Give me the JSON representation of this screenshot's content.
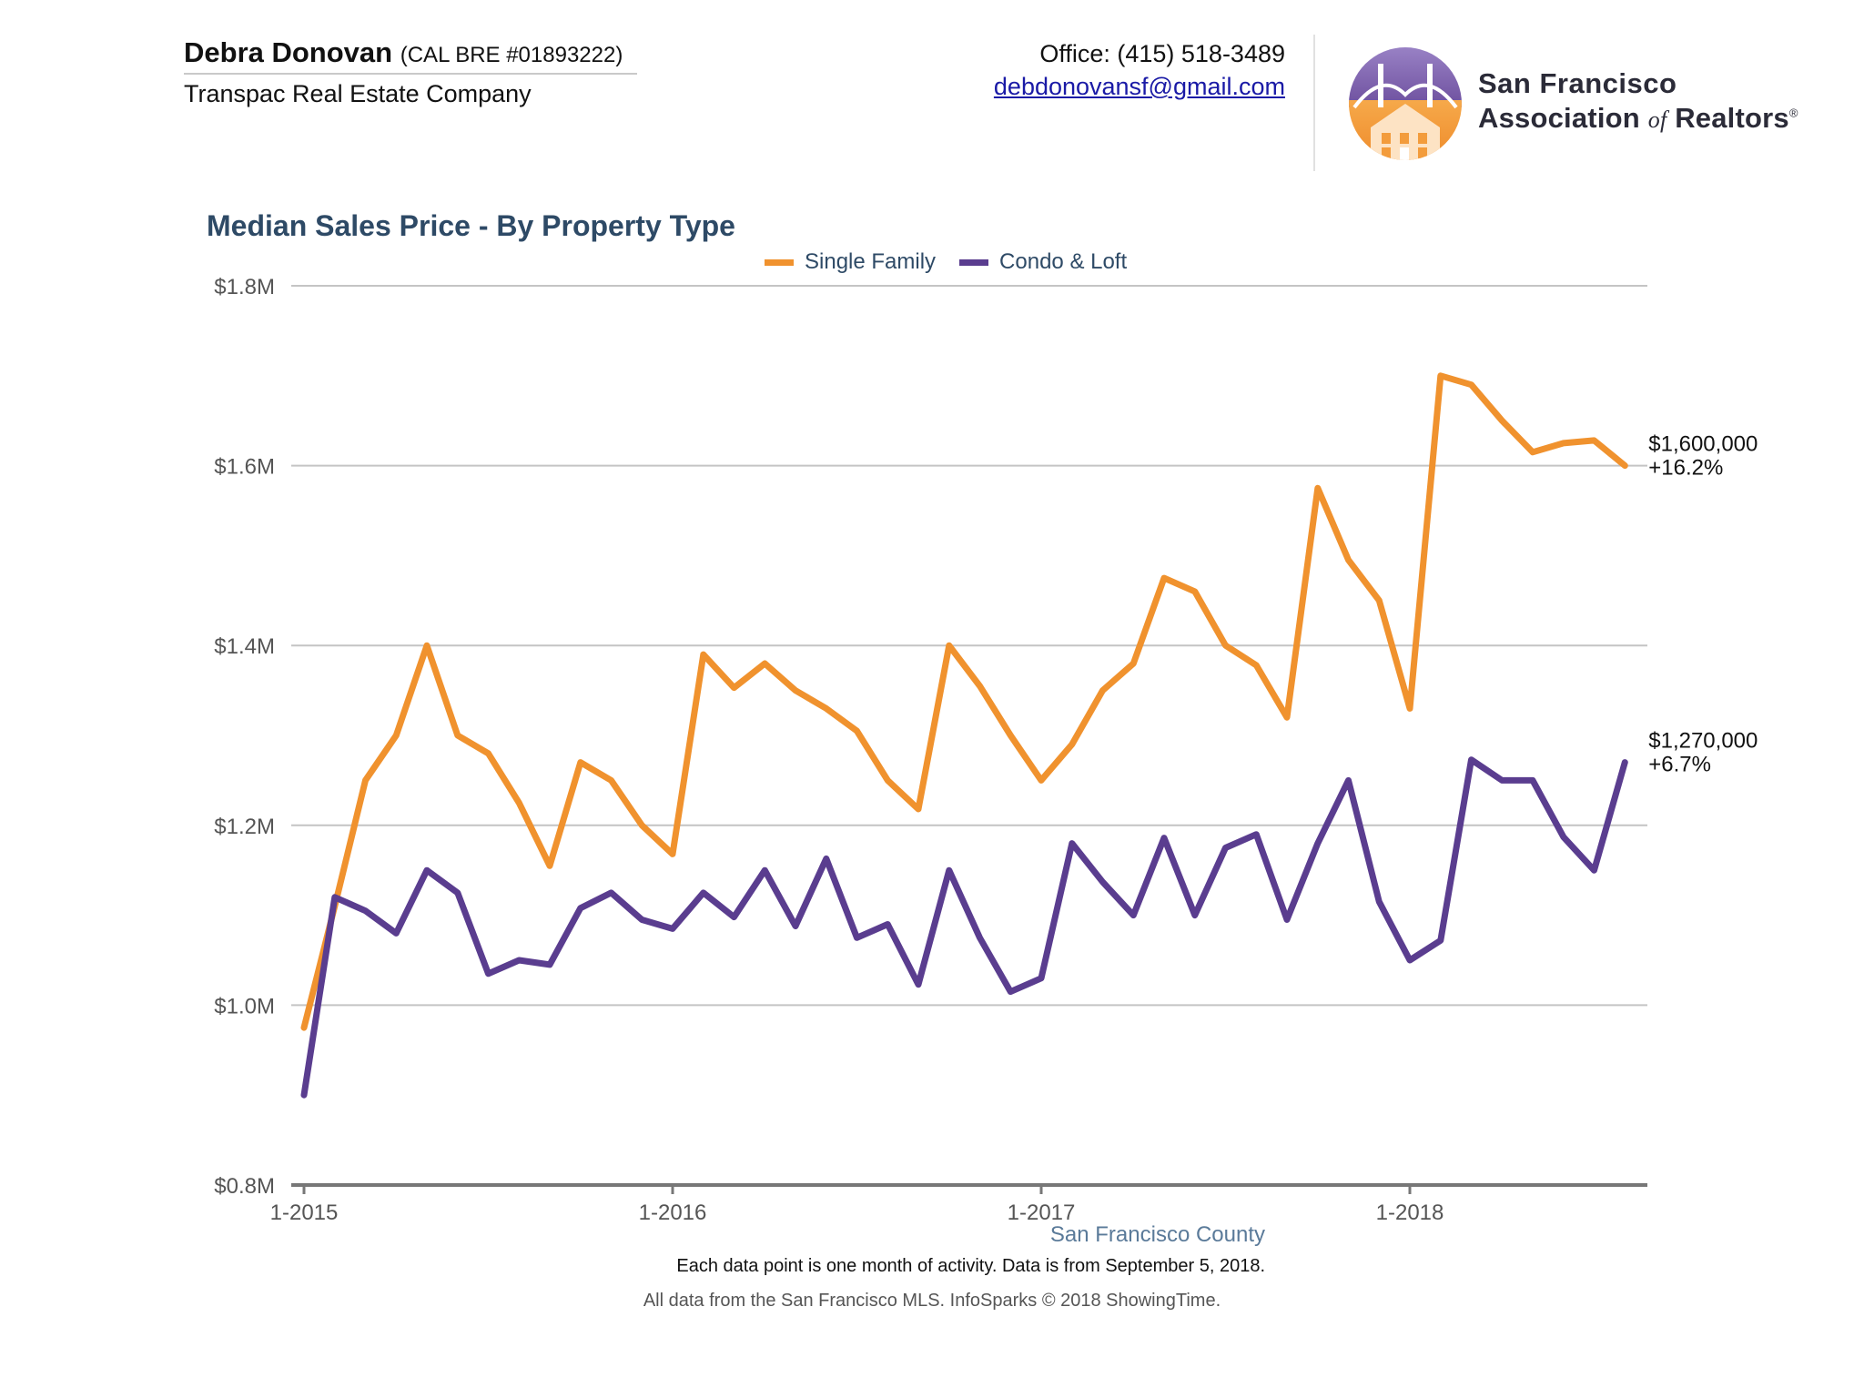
{
  "header": {
    "agent_name": "Debra Donovan",
    "agent_license": "(CAL BRE #01893222)",
    "company": "Transpac Real Estate Company",
    "office_phone": "Office: (415) 518-3489",
    "email": "debdonovansf@gmail.com"
  },
  "logo": {
    "line1": "San Francisco",
    "line2_a": "Association",
    "line2_of": "of",
    "line2_b": "Realtors",
    "registered": "®",
    "icon": "golden-gate-bridge-house-logo-icon",
    "colors": {
      "purple": "#7b5ea7",
      "orange": "#f39c3c"
    }
  },
  "chart_data": {
    "type": "line",
    "title": "Median Sales Price - By Property Type",
    "x_tick_labels": [
      "1-2015",
      "1-2016",
      "1-2017",
      "1-2018"
    ],
    "x_start": "2015-01",
    "x_end": "2018-08",
    "y_tick_labels": [
      "$0.8M",
      "$1.0M",
      "$1.2M",
      "$1.4M",
      "$1.6M",
      "$1.8M"
    ],
    "ylim": [
      0.8,
      1.8
    ],
    "y_unit": "$M",
    "grid": true,
    "legend_placement": "top-center",
    "region_label": "San Francisco County",
    "series": [
      {
        "name": "Single Family",
        "color": "#f0922e",
        "end_label_value": "$1,600,000",
        "end_label_change": "+16.2%",
        "values": [
          0.975,
          1.11,
          1.25,
          1.3,
          1.4,
          1.3,
          1.28,
          1.225,
          1.155,
          1.27,
          1.25,
          1.2,
          1.168,
          1.39,
          1.353,
          1.38,
          1.35,
          1.33,
          1.305,
          1.25,
          1.218,
          1.4,
          1.355,
          1.3,
          1.25,
          1.29,
          1.35,
          1.38,
          1.475,
          1.46,
          1.4,
          1.378,
          1.32,
          1.575,
          1.495,
          1.45,
          1.33,
          1.7,
          1.69,
          1.65,
          1.615,
          1.625,
          1.628,
          1.6
        ]
      },
      {
        "name": "Condo & Loft",
        "color": "#5a3d8f",
        "end_label_value": "$1,270,000",
        "end_label_change": "+6.7%",
        "values": [
          0.9,
          1.12,
          1.105,
          1.08,
          1.15,
          1.125,
          1.035,
          1.05,
          1.045,
          1.108,
          1.125,
          1.095,
          1.085,
          1.125,
          1.098,
          1.15,
          1.088,
          1.163,
          1.075,
          1.09,
          1.023,
          1.15,
          1.075,
          1.015,
          1.03,
          1.18,
          1.137,
          1.1,
          1.186,
          1.1,
          1.175,
          1.19,
          1.095,
          1.18,
          1.25,
          1.115,
          1.05,
          1.072,
          1.273,
          1.25,
          1.25,
          1.187,
          1.15,
          1.27
        ]
      }
    ]
  },
  "notes": {
    "data_note": "Each data point is one month of activity. Data is from September 5, 2018.",
    "footer": "All data from the San Francisco MLS. InfoSparks © 2018 ShowingTime."
  }
}
